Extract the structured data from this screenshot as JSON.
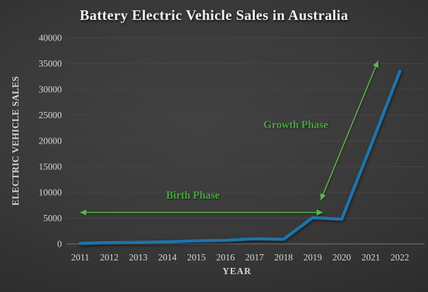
{
  "chart_data": {
    "type": "line",
    "title": "Battery Electric Vehicle Sales in Australia",
    "xlabel": "YEAR",
    "ylabel": "ELECTRIC VEHICLE SALES",
    "categories": [
      "2011",
      "2012",
      "2013",
      "2014",
      "2015",
      "2016",
      "2017",
      "2018",
      "2019",
      "2020",
      "2021",
      "2022"
    ],
    "series": [
      {
        "name": "battery-ev-sales",
        "values": [
          100,
          250,
          300,
          400,
          600,
          700,
          1000,
          900,
          5100,
          4800,
          19000,
          33500
        ]
      }
    ],
    "ylim": [
      0,
      40000
    ],
    "ytick_step": 5000,
    "grid": true,
    "legend": "none",
    "colors": {
      "line": "#1f73aa",
      "grid": "#454545",
      "axis": "#6e6e6e",
      "text": "#d6d6d6",
      "title": "#f0f0f0",
      "green_text": "#45a53c",
      "green_arrow": "#5ab946"
    },
    "annotations": {
      "labels": [
        {
          "name": "birth-phase-label",
          "text": "Birth Phase",
          "x": 3.88,
          "y": 8800
        },
        {
          "name": "growth-phase-label",
          "text": "Growth Phase",
          "x": 7.42,
          "y": 22500
        }
      ],
      "arrows": [
        {
          "name": "birth-phase-arrow",
          "from": [
            0.0,
            6100
          ],
          "to": [
            8.35,
            6100
          ],
          "double": true
        },
        {
          "name": "growth-phase-arrow",
          "from": [
            8.28,
            8500
          ],
          "to": [
            10.25,
            35500
          ],
          "double": true
        }
      ]
    }
  }
}
